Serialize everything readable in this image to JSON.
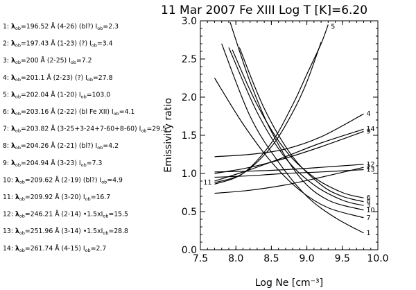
{
  "chart_data": {
    "type": "line",
    "title": "11 Mar 2007    Fe XIII    Log T [K]=6.20",
    "xlabel": "Log Ne [cm⁻³]",
    "ylabel": "Emissivity ratio",
    "xlim": [
      7.5,
      10.0
    ],
    "ylim": [
      0.0,
      3.0
    ],
    "xticks": [
      "7.5",
      "8.0",
      "8.5",
      "9.0",
      "9.5",
      "10.0"
    ],
    "yticks": [
      "0.0",
      "0.5",
      "1.0",
      "1.5",
      "2.0",
      "2.5",
      "3.0"
    ],
    "legend": [
      {
        "id": "1",
        "lambda": "196.52 Å",
        "rest": " (4-26) (bl?)  I",
        "ival": "=2.3"
      },
      {
        "id": "2",
        "lambda": "197.43 Å",
        "rest": " (1-23) (?)  I",
        "ival": "=3.4"
      },
      {
        "id": "3",
        "lambda": "200 Å",
        "rest": " (2-25)   I",
        "ival": "=7.2"
      },
      {
        "id": "4",
        "lambda": "201.1 Å",
        "rest": " (2-23) (?)  I",
        "ival": "=27.8"
      },
      {
        "id": "5",
        "lambda": "202.04 Å",
        "rest": " (1-20)   I",
        "ival": "=103.0"
      },
      {
        "id": "6",
        "lambda": "203.16 Å",
        "rest": " (2-22) (bl Fe XII)  I",
        "ival": "=4.1"
      },
      {
        "id": "7",
        "lambda": "203.82 Å",
        "rest": " (3-25+3-24+7-60+8-60)  I",
        "ival": "=29.5"
      },
      {
        "id": "8",
        "lambda": "204.26 Å",
        "rest": " (2-21) (bl?)  I",
        "ival": "=4.2"
      },
      {
        "id": "9",
        "lambda": "204.94 Å",
        "rest": " (3-23)   I",
        "ival": "=7.3"
      },
      {
        "id": "10",
        "lambda": "209.62 Å",
        "rest": " (2-19) (bl?)  I",
        "ival": "=4.9"
      },
      {
        "id": "11",
        "lambda": "209.92 Å",
        "rest": " (3-20)   I",
        "ival": "=16.7"
      },
      {
        "id": "12",
        "lambda": "246.21 Å",
        "rest": " (2-14)  •1.5xI",
        "ival": "=15.5"
      },
      {
        "id": "13",
        "lambda": "251.96 Å",
        "rest": " (3-14)  •1.5xI",
        "ival": "=28.8"
      },
      {
        "id": "14",
        "lambda": "261.74 Å",
        "rest": " (4-15)   I",
        "ival": "=2.7"
      }
    ],
    "series": [
      {
        "name": "1",
        "x": [
          7.8,
          8.2,
          8.6,
          9.0,
          9.4,
          9.8
        ],
        "y": [
          2.7,
          1.75,
          1.15,
          0.7,
          0.42,
          0.22
        ]
      },
      {
        "name": "2",
        "x": [
          7.7,
          8.2,
          8.7,
          9.2,
          9.8
        ],
        "y": [
          0.74,
          0.78,
          0.85,
          0.95,
          1.08
        ]
      },
      {
        "name": "3",
        "x": [
          7.9,
          8.3,
          8.7,
          9.1,
          9.5,
          9.8
        ],
        "y": [
          2.65,
          1.8,
          1.2,
          0.85,
          0.65,
          0.58
        ]
      },
      {
        "name": "4",
        "x": [
          7.7,
          8.2,
          8.7,
          9.2,
          9.8
        ],
        "y": [
          1.22,
          1.25,
          1.32,
          1.48,
          1.78
        ]
      },
      {
        "name": "5",
        "x": [
          7.7,
          8.1,
          8.5,
          8.8,
          9.0,
          9.2,
          9.3
        ],
        "y": [
          0.86,
          1.0,
          1.4,
          1.9,
          2.3,
          2.7,
          2.95
        ]
      },
      {
        "name": "6",
        "x": [
          7.95,
          8.3,
          8.7,
          9.1,
          9.5,
          9.8
        ],
        "y": [
          2.62,
          1.9,
          1.3,
          0.95,
          0.75,
          0.68
        ]
      },
      {
        "name": "7",
        "x": [
          7.7,
          8.1,
          8.5,
          8.9,
          9.3,
          9.8
        ],
        "y": [
          2.25,
          1.65,
          1.15,
          0.78,
          0.55,
          0.42
        ]
      },
      {
        "name": "8",
        "x": [
          8.05,
          8.4,
          8.8,
          9.2,
          9.5,
          9.8
        ],
        "y": [
          2.65,
          1.85,
          1.22,
          0.85,
          0.7,
          0.63
        ]
      },
      {
        "name": "9",
        "x": [
          7.7,
          8.2,
          8.7,
          9.2,
          9.8
        ],
        "y": [
          1.0,
          1.08,
          1.2,
          1.35,
          1.55
        ]
      },
      {
        "name": "10",
        "x": [
          7.92,
          8.2,
          8.5,
          8.9,
          9.3,
          9.8
        ],
        "y": [
          2.98,
          2.2,
          1.55,
          0.95,
          0.65,
          0.52
        ]
      },
      {
        "name": "11",
        "x": [
          7.7,
          8.1,
          8.5,
          8.8,
          9.0,
          9.2
        ],
        "y": [
          0.88,
          1.0,
          1.35,
          1.8,
          2.2,
          2.72
        ]
      },
      {
        "name": "12",
        "x": [
          7.7,
          8.2,
          8.7,
          9.2,
          9.8
        ],
        "y": [
          1.02,
          1.03,
          1.05,
          1.08,
          1.12
        ]
      },
      {
        "name": "13",
        "x": [
          7.7,
          8.2,
          8.7,
          9.2,
          9.8
        ],
        "y": [
          0.95,
          0.97,
          1.0,
          1.02,
          1.05
        ]
      },
      {
        "name": "14",
        "x": [
          7.7,
          8.2,
          8.7,
          9.2,
          9.8
        ],
        "y": [
          0.9,
          1.05,
          1.22,
          1.4,
          1.58
        ]
      }
    ]
  }
}
